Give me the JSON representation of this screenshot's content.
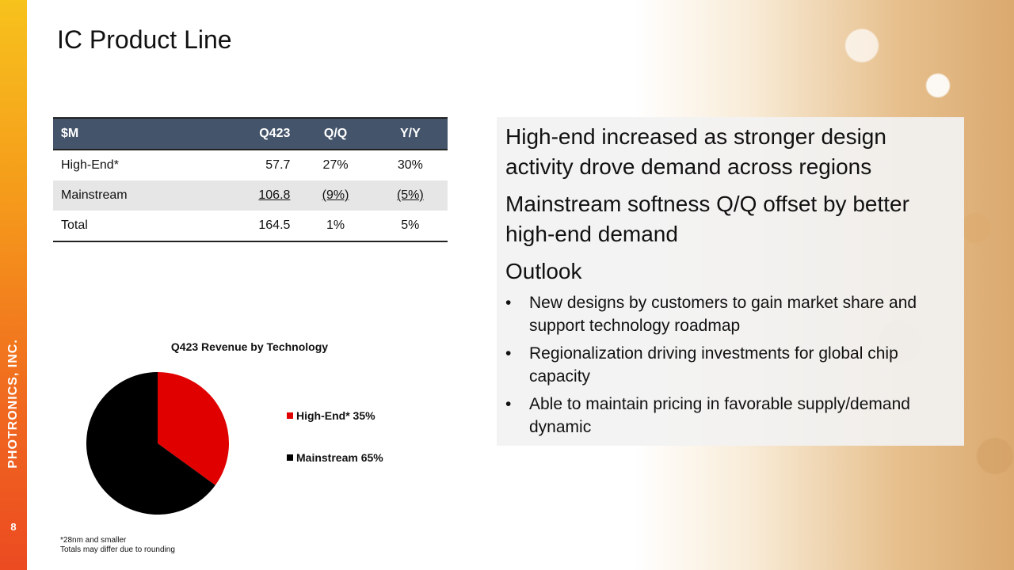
{
  "slide": {
    "title": "IC Product Line",
    "page_number": "8",
    "brand": "PHOTRONICS, INC."
  },
  "table": {
    "headers": [
      "$M",
      "Q423",
      "Q/Q",
      "Y/Y"
    ],
    "rows": [
      [
        "High-End*",
        "57.7",
        "27%",
        "30%"
      ],
      [
        "Mainstream",
        "106.8",
        "(9%)",
        "(5%)"
      ],
      [
        "Total",
        "164.5",
        "1%",
        "5%"
      ]
    ]
  },
  "chart_data": {
    "type": "pie",
    "title": "Q423 Revenue by Technology",
    "categories": [
      "High-End*",
      "Mainstream"
    ],
    "values": [
      35,
      65
    ],
    "legend": [
      "High-End* 35%",
      "Mainstream 65%"
    ],
    "colors": [
      "#e00000",
      "#000000"
    ],
    "legend_position": "right"
  },
  "footnotes": [
    "*28nm and smaller",
    "Totals may differ due to rounding"
  ],
  "panel": {
    "point1": "High-end increased as stronger design activity drove demand across regions",
    "point2": "Mainstream softness Q/Q offset by better high-end demand",
    "outlook": "Outlook",
    "bullets": [
      "New designs by customers to gain market share and support technology roadmap",
      "Regionalization driving investments for global chip capacity",
      "Able to maintain pricing in favorable supply/demand dynamic"
    ]
  },
  "colors": {
    "header_bg": "#44546a",
    "accent_top": "#f7c21c",
    "accent_bottom": "#ec4a21"
  }
}
